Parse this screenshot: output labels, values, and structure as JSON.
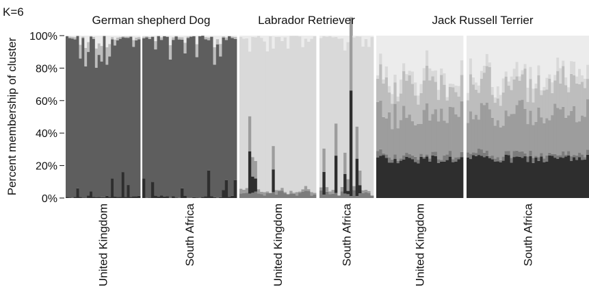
{
  "chart_data": {
    "type": "stacked-bar",
    "corner_label": "K=6",
    "ylabel": "Percent membership of cluster",
    "ylim": [
      0,
      100
    ],
    "yticks": [
      "0%",
      "20%",
      "40%",
      "60%",
      "80%",
      "100%"
    ],
    "grid": false,
    "colors": {
      "c1": "#2e2e2e",
      "c2": "#5e5e5e",
      "c3": "#7c7c7c",
      "c4": "#9d9d9d",
      "c5": "#bdbdbd",
      "c6": "#d9d9d9",
      "c7": "#ececec"
    },
    "groups": [
      {
        "breed": "German shepherd Dog",
        "populations": [
          {
            "name": "United Kingdom",
            "n": 28,
            "profile": "gsd",
            "spikes": [
              [
                4,
                6
              ],
              [
                9,
                4
              ],
              [
                17,
                12
              ],
              [
                21,
                16
              ],
              [
                23,
                8
              ]
            ]
          },
          {
            "name": "South Africa",
            "n": 32,
            "profile": "gsd",
            "spikes": [
              [
                0,
                12
              ],
              [
                3,
                10
              ],
              [
                13,
                6
              ],
              [
                22,
                17
              ],
              [
                27,
                5
              ],
              [
                28,
                11
              ],
              [
                31,
                11
              ]
            ]
          }
        ]
      },
      {
        "breed": "Labrador Retriever",
        "populations": [
          {
            "name": "United Kingdom",
            "n": 26,
            "profile": "lab",
            "spikes": [
              [
                3,
                26
              ],
              [
                4,
                10
              ],
              [
                5,
                8
              ],
              [
                11,
                14
              ]
            ]
          },
          {
            "name": "South Africa",
            "n": 18,
            "profile": "lab",
            "spikes": [
              [
                1,
                14
              ],
              [
                5,
                23
              ],
              [
                8,
                12
              ],
              [
                9,
                2
              ],
              [
                10,
                65
              ],
              [
                12,
                23
              ],
              [
                13,
                5
              ]
            ]
          }
        ]
      },
      {
        "breed": "Jack Russell Terrier",
        "populations": [
          {
            "name": "United Kingdom",
            "n": 30,
            "profile": "jrt",
            "spikes": []
          },
          {
            "name": "South Africa",
            "n": 45,
            "profile": "jrt",
            "spikes": []
          }
        ]
      }
    ]
  }
}
